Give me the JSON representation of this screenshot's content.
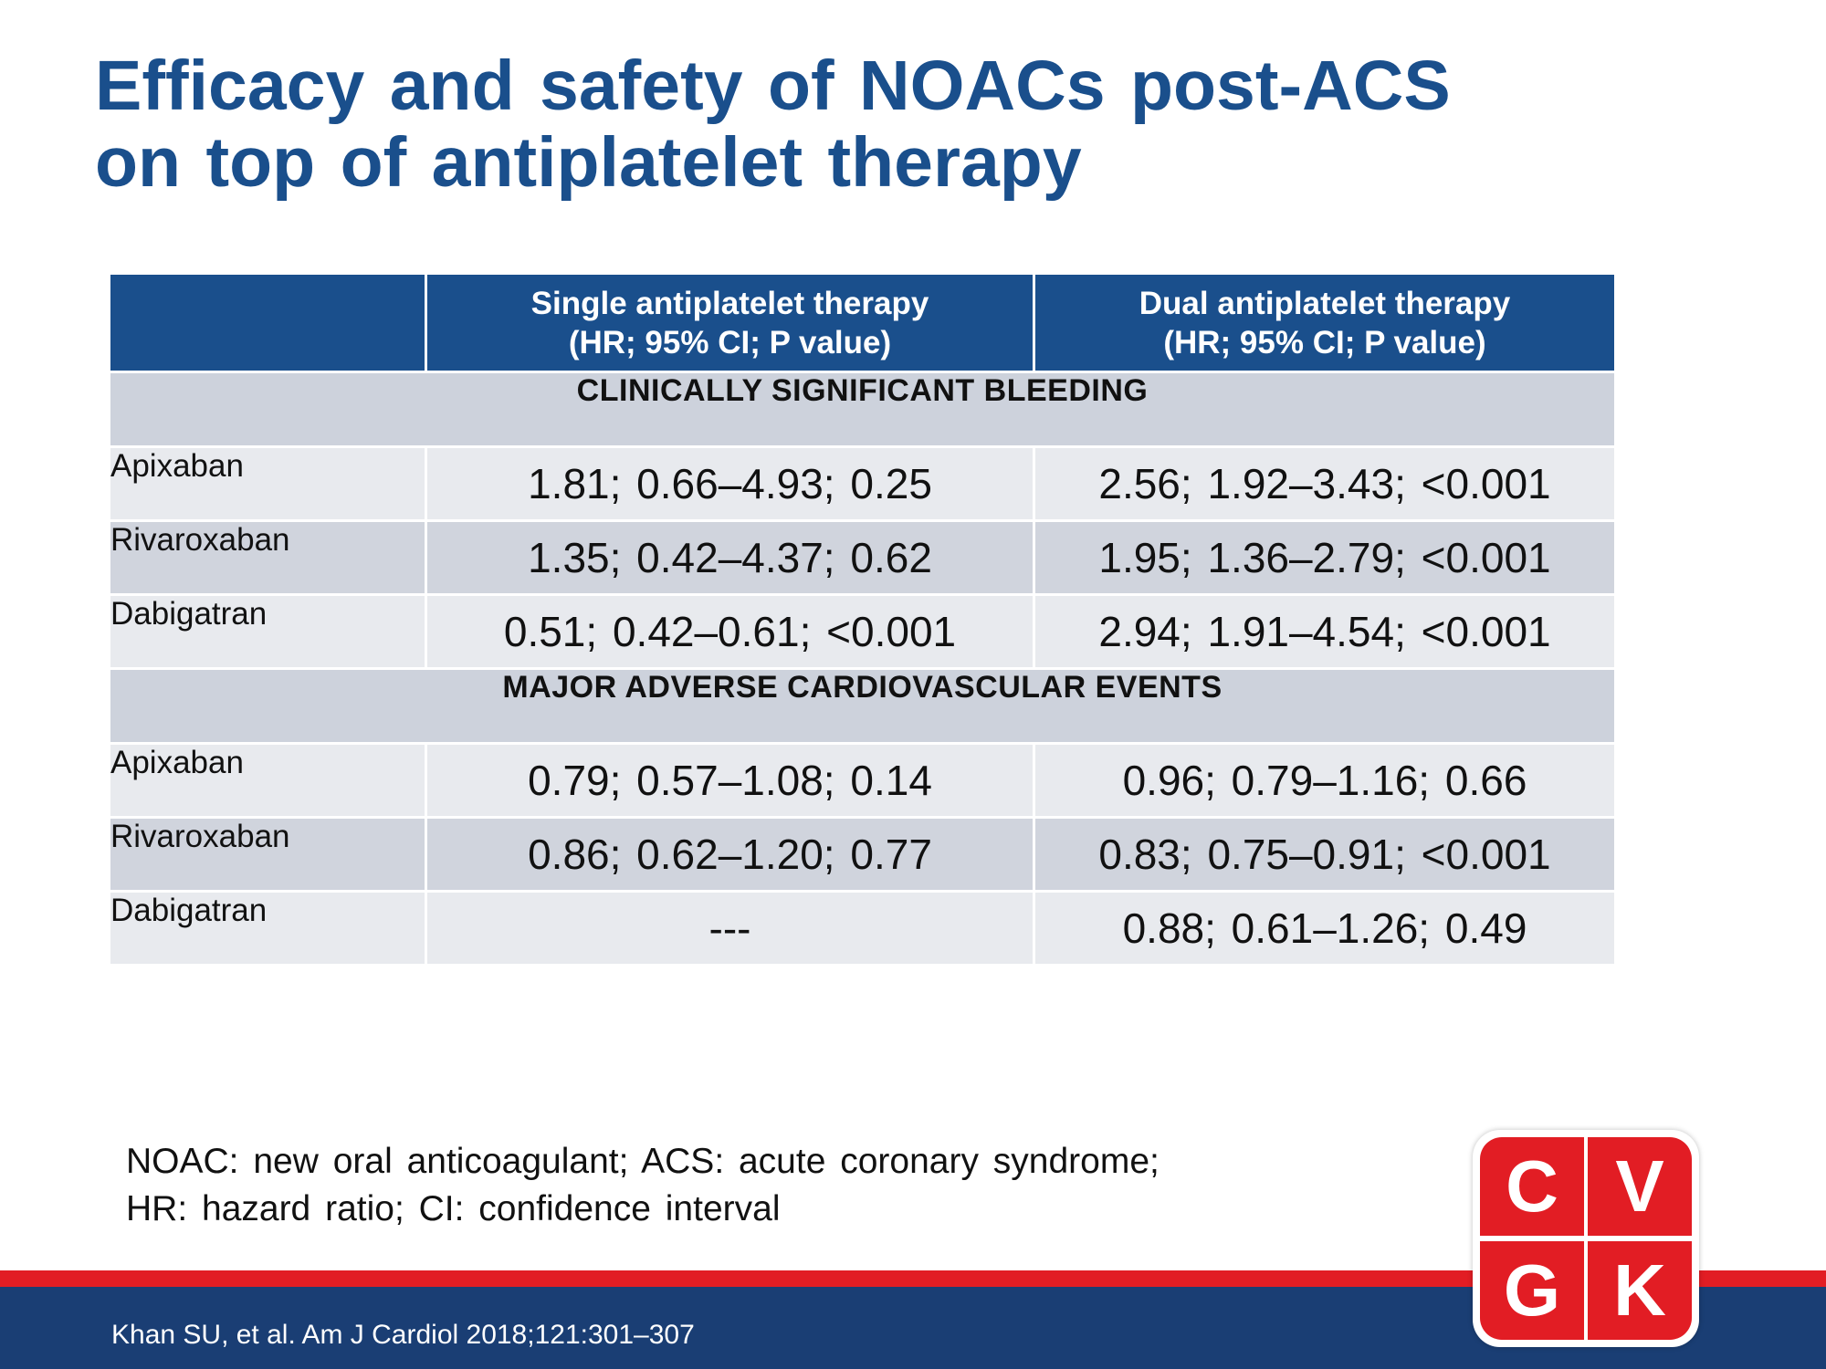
{
  "slide": {
    "title_lines": [
      "Efficacy and safety of NOACs post-ACS",
      "on top of antiplatelet therapy"
    ]
  },
  "table": {
    "header": {
      "col1": "",
      "col2_lines": [
        "Single antiplatelet therapy",
        "(HR; 95% CI; P value)"
      ],
      "col3_lines": [
        "Dual antiplatelet therapy",
        "(HR; 95% CI; P value)"
      ]
    },
    "sections": [
      {
        "title": "CLINICALLY SIGNIFICANT BLEEDING",
        "rows": [
          {
            "drug": "Apixaban",
            "single": "1.81; 0.66–4.93; 0.25",
            "dual": "2.56; 1.92–3.43; <0.001"
          },
          {
            "drug": "Rivaroxaban",
            "single": "1.35; 0.42–4.37; 0.62",
            "dual": "1.95; 1.36–2.79; <0.001"
          },
          {
            "drug": "Dabigatran",
            "single": "0.51; 0.42–0.61; <0.001",
            "dual": "2.94; 1.91–4.54; <0.001"
          }
        ]
      },
      {
        "title": "MAJOR ADVERSE CARDIOVASCULAR EVENTS",
        "rows": [
          {
            "drug": "Apixaban",
            "single": "0.79; 0.57–1.08; 0.14",
            "dual": "0.96; 0.79–1.16; 0.66"
          },
          {
            "drug": "Rivaroxaban",
            "single": "0.86; 0.62–1.20; 0.77",
            "dual": "0.83; 0.75–0.91; <0.001"
          },
          {
            "drug": "Dabigatran",
            "single": "---",
            "dual": "0.88; 0.61–1.26; 0.49"
          }
        ]
      }
    ]
  },
  "footnote_lines": [
    "NOAC: new oral anticoagulant; ACS: acute coronary syndrome;",
    "HR: hazard ratio; CI: confidence interval"
  ],
  "citation": "Khan SU, et al. Am J Cardiol 2018;121:301–307",
  "logo": {
    "letters": [
      "C",
      "V",
      "G",
      "K"
    ]
  },
  "colors": {
    "title_blue": "#1a4f8c",
    "footer_navy": "#1a3e74",
    "accent_red": "#e21d24",
    "section_gray": "#cdd2dc",
    "row_light": "#e8eaee",
    "row_dark": "#d0d4dd"
  }
}
